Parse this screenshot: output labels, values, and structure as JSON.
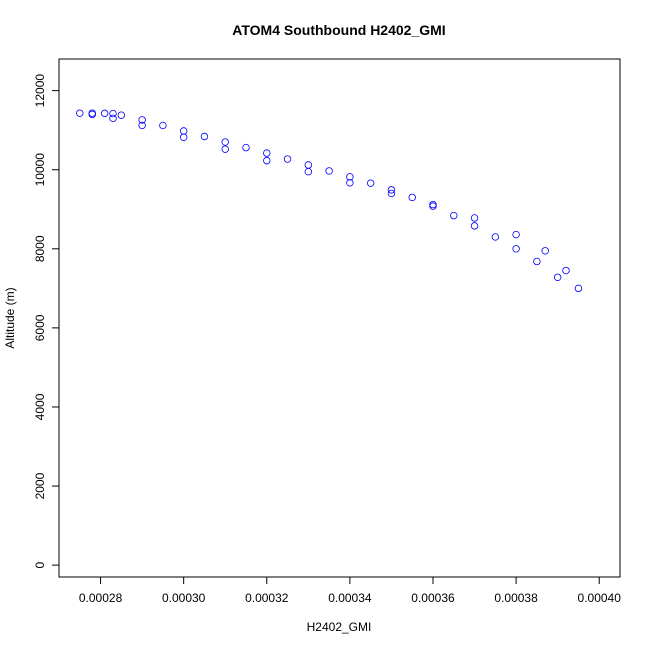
{
  "chart_data": {
    "type": "scatter",
    "title": "ATOM4 Southbound H2402_GMI",
    "xlabel": "H2402_GMI",
    "ylabel": "Altitude (m)",
    "xlim": [
      0.00027,
      0.000405
    ],
    "ylim": [
      -300,
      12800
    ],
    "xticks": [
      {
        "value": 0.00028,
        "label": "0.00028"
      },
      {
        "value": 0.0003,
        "label": "0.00030"
      },
      {
        "value": 0.00032,
        "label": "0.00032"
      },
      {
        "value": 0.00034,
        "label": "0.00034"
      },
      {
        "value": 0.00036,
        "label": "0.00036"
      },
      {
        "value": 0.00038,
        "label": "0.00038"
      },
      {
        "value": 0.0004,
        "label": "0.00040"
      }
    ],
    "yticks": [
      {
        "value": 0,
        "label": "0"
      },
      {
        "value": 2000,
        "label": "2000"
      },
      {
        "value": 4000,
        "label": "4000"
      },
      {
        "value": 6000,
        "label": "6000"
      },
      {
        "value": 8000,
        "label": "8000"
      },
      {
        "value": 10000,
        "label": "10000"
      },
      {
        "value": 12000,
        "label": "12000"
      }
    ],
    "grid": false,
    "marker": "open-circle",
    "color": "#0000ff",
    "series": [
      {
        "points": [
          [
            0.000275,
            11430
          ],
          [
            0.000278,
            11430
          ],
          [
            0.000281,
            11425
          ],
          [
            0.000283,
            11420
          ],
          [
            0.000285,
            11380
          ],
          [
            0.00029,
            11260
          ],
          [
            0.000295,
            11120
          ],
          [
            0.0003,
            10980
          ],
          [
            0.000305,
            10840
          ],
          [
            0.00031,
            10700
          ],
          [
            0.000315,
            10560
          ],
          [
            0.00032,
            10420
          ],
          [
            0.000325,
            10270
          ],
          [
            0.00033,
            10120
          ],
          [
            0.000335,
            9970
          ],
          [
            0.00034,
            9820
          ],
          [
            0.000345,
            9660
          ],
          [
            0.00035,
            9490
          ],
          [
            0.000355,
            9300
          ],
          [
            0.00036,
            9080
          ],
          [
            0.000365,
            8840
          ],
          [
            0.00037,
            8580
          ],
          [
            0.000375,
            8300
          ],
          [
            0.00038,
            8000
          ],
          [
            0.000385,
            7680
          ],
          [
            0.00039,
            7280
          ],
          [
            0.000278,
            11400
          ],
          [
            0.000283,
            11300
          ],
          [
            0.00029,
            11120
          ],
          [
            0.0003,
            10820
          ],
          [
            0.00031,
            10520
          ],
          [
            0.00032,
            10230
          ],
          [
            0.00033,
            9950
          ],
          [
            0.00034,
            9670
          ],
          [
            0.00035,
            9400
          ],
          [
            0.00036,
            9120
          ],
          [
            0.00037,
            8780
          ],
          [
            0.00038,
            8360
          ],
          [
            0.000387,
            7950
          ],
          [
            0.000392,
            7450
          ],
          [
            0.000395,
            7000
          ]
        ]
      }
    ]
  }
}
